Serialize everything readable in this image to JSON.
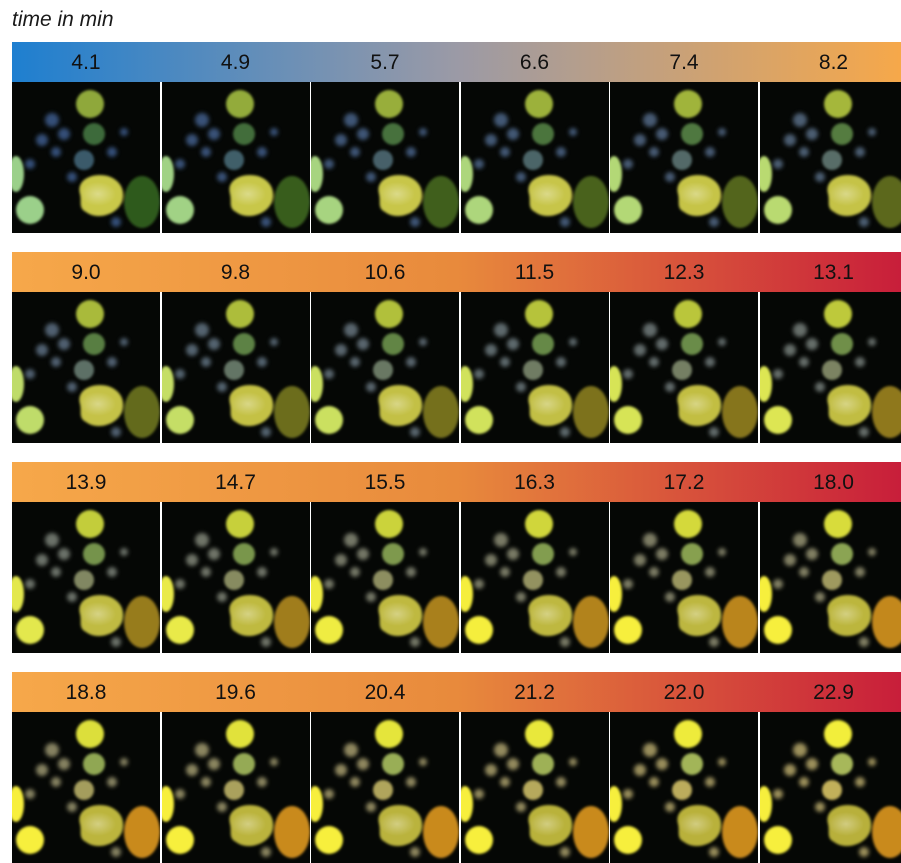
{
  "title": "time in min",
  "colors": {
    "blue": "#1e7fd0",
    "grey": "#9b9aa6",
    "orange": "#f6a84a",
    "orange_mid": "#e88a3c",
    "red": "#c81e3a",
    "frame_bg": "#000000"
  },
  "rows": [
    {
      "gradient": [
        "#1e7fd0",
        "#9b9aa6",
        "#f6a84a"
      ],
      "labels": [
        "4.1",
        "4.9",
        "5.7",
        "6.6",
        "7.4",
        "8.2"
      ]
    },
    {
      "gradient": [
        "#f6a84a",
        "#e88a3c",
        "#c81e3a"
      ],
      "labels": [
        "9.0",
        "9.8",
        "10.6",
        "11.5",
        "12.3",
        "13.1"
      ]
    },
    {
      "gradient": [
        "#f6a84a",
        "#e88a3c",
        "#c81e3a"
      ],
      "labels": [
        "13.9",
        "14.7",
        "15.5",
        "16.3",
        "17.2",
        "18.0"
      ]
    },
    {
      "gradient": [
        "#f6a84a",
        "#e88a3c",
        "#c81e3a"
      ],
      "labels": [
        "18.8",
        "19.6",
        "20.4",
        "21.2",
        "22.0",
        "22.9"
      ]
    }
  ]
}
